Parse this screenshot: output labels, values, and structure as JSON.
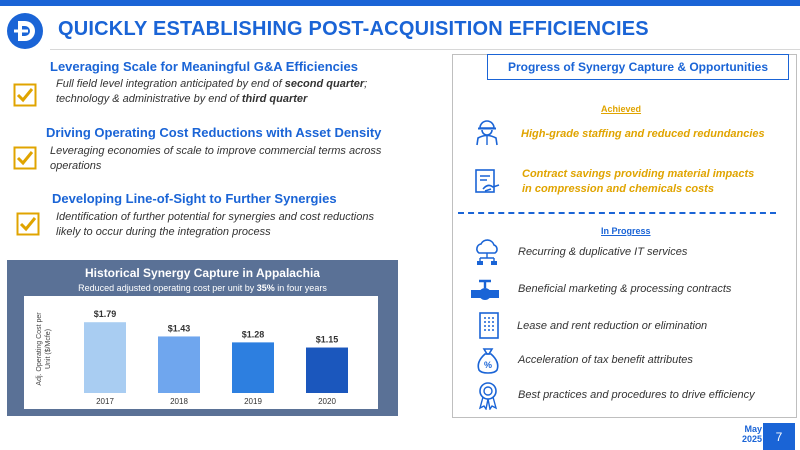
{
  "header": {
    "title": "QUICKLY ESTABLISHING POST-ACQUISITION EFFICIENCIES"
  },
  "bullets": [
    {
      "heading": "Leveraging Scale for Meaningful G&A Efficiencies",
      "body_parts": [
        "Full field level integration anticipated by end of ",
        "second quarter",
        "; technology & administrative by end of ",
        "third quarter"
      ]
    },
    {
      "heading": "Driving Operating Cost Reductions with Asset Density",
      "body": "Leveraging economies of scale to improve commercial terms across operations"
    },
    {
      "heading": "Developing Line-of-Sight to Further Synergies",
      "body": "Identification of further potential for synergies and cost reductions likely to occur during the integration process"
    }
  ],
  "chart_data": {
    "type": "bar",
    "title": "Historical Synergy Capture in Appalachia",
    "subtitle_parts": [
      "Reduced adjusted operating cost per unit by ",
      "35%",
      " in four years"
    ],
    "ylabel": "Adj. Operating Cost per Unit ($/Mcfe)",
    "categories": [
      "2017",
      "2018",
      "2019",
      "2020"
    ],
    "values": [
      1.79,
      1.43,
      1.28,
      1.15
    ],
    "value_labels": [
      "$1.79",
      "$1.43",
      "$1.28",
      "$1.15"
    ],
    "colors": [
      "#a9cdf2",
      "#6fa6ee",
      "#2d7fe0",
      "#1b57bd"
    ],
    "ylim": [
      0,
      2.2
    ],
    "grid": false,
    "legend": "none"
  },
  "panel": {
    "title": "Progress of Synergy Capture & Opportunities",
    "achieved_label": "Achieved",
    "achieved_items": [
      {
        "icon": "worker-icon",
        "lines": [
          "High-grade staffing and reduced redundancies"
        ]
      },
      {
        "icon": "contract-handshake-icon",
        "lines": [
          "Contract savings providing material impacts",
          "in compression and chemicals costs"
        ]
      }
    ],
    "in_progress_label": "In Progress",
    "in_progress_items": [
      {
        "icon": "cloud-network-icon",
        "text": "Recurring & duplicative IT services"
      },
      {
        "icon": "pipeline-valve-icon",
        "text": "Beneficial marketing & processing contracts"
      },
      {
        "icon": "office-building-icon",
        "text": "Lease and rent reduction or elimination"
      },
      {
        "icon": "tax-money-bag-icon",
        "text": "Acceleration of tax benefit attributes"
      },
      {
        "icon": "award-ribbon-icon",
        "text": "Best practices and procedures to drive efficiency"
      }
    ]
  },
  "footer": {
    "month": "May",
    "year": "2025",
    "page": "7"
  },
  "colors": {
    "brand_blue": "#1a64d6",
    "accent_gold": "#e0a400",
    "chart_panel": "#5a7196"
  }
}
